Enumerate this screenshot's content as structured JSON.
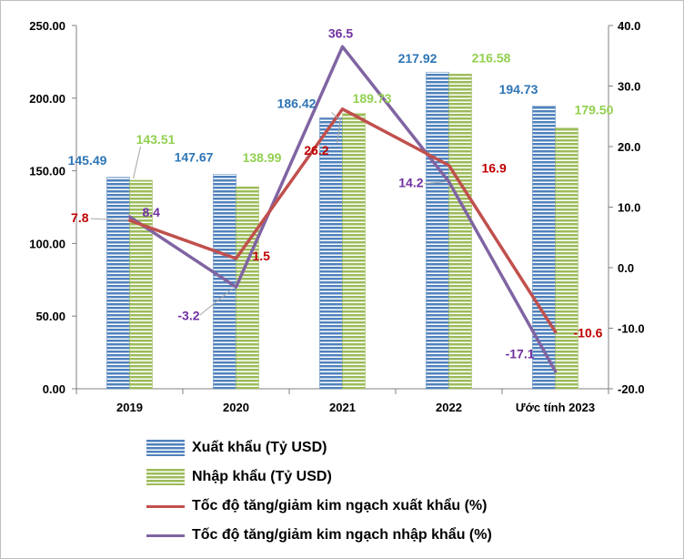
{
  "colors": {
    "export_bar": "#4f81bd",
    "import_bar": "#9bbb59",
    "export_line": "#c0504d",
    "import_line": "#8064a2",
    "export_label": "#2e75b6",
    "import_label": "#92d050",
    "export_rate_label": "#c00000",
    "import_rate_label": "#7030a0"
  },
  "chart_data": {
    "type": "bar+line",
    "categories": [
      "2019",
      "2020",
      "2021",
      "2022",
      "Ước tính 2023"
    ],
    "series": [
      {
        "name": "Xuất khẩu (Tỷ USD)",
        "axis": "left",
        "kind": "bar",
        "values": [
          145.49,
          147.67,
          186.42,
          217.92,
          194.73
        ],
        "labels": [
          "145.49",
          "147.67",
          "186.42",
          "217.92",
          "194.73"
        ]
      },
      {
        "name": "Nhập khẩu (Tỷ USD)",
        "axis": "left",
        "kind": "bar",
        "values": [
          143.51,
          138.99,
          189.73,
          216.58,
          179.5
        ],
        "labels": [
          "143.51",
          "138.99",
          "189.73",
          "216.58",
          "179.50"
        ]
      },
      {
        "name": "Tốc độ tăng/giảm kim ngạch xuất khẩu (%)",
        "axis": "right",
        "kind": "line",
        "values": [
          7.8,
          1.5,
          26.2,
          16.9,
          -10.6
        ],
        "labels": [
          "7.8",
          "1.5",
          "26.2",
          "16.9",
          "-10.6"
        ]
      },
      {
        "name": "Tốc độ tăng/giảm kim ngạch nhập khẩu (%)",
        "axis": "right",
        "kind": "line",
        "values": [
          8.4,
          -3.2,
          36.5,
          14.2,
          -17.1
        ],
        "labels": [
          "8.4",
          "-3.2",
          "36.5",
          "14.2",
          "-17.1"
        ]
      }
    ],
    "y_left": {
      "min": 0,
      "max": 250,
      "ticks": [
        "0.00",
        "50.00",
        "100.00",
        "150.00",
        "200.00",
        "250.00"
      ]
    },
    "y_right": {
      "min": -20,
      "max": 40,
      "ticks": [
        "-20.0",
        "-10.0",
        "0.0",
        "10.0",
        "20.0",
        "30.0",
        "40.0"
      ]
    },
    "legend_position": "bottom"
  }
}
